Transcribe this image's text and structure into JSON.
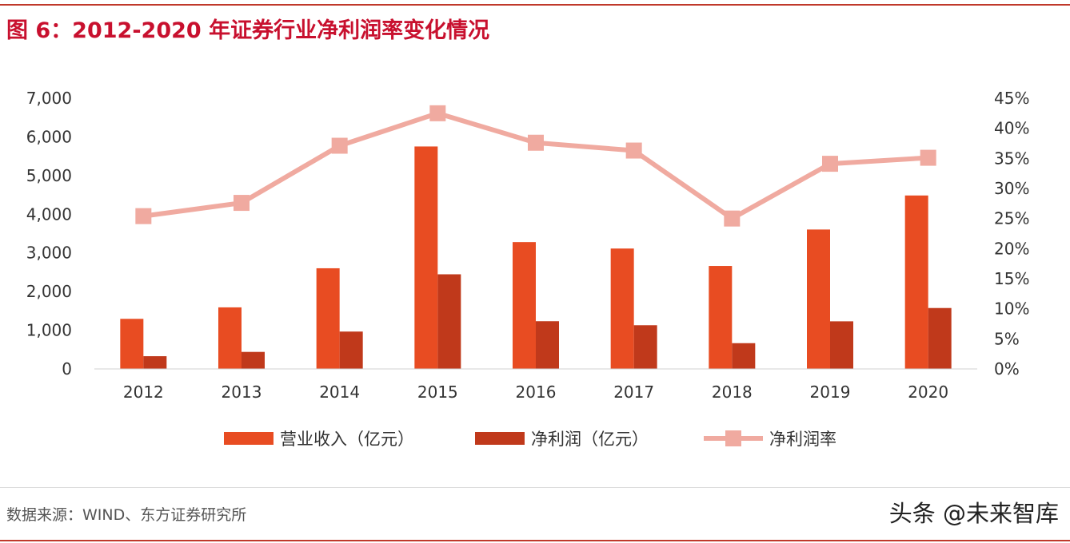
{
  "title": "图 6：2012-2020 年证券行业净利润率变化情况",
  "source": "数据来源：WIND、东方证券研究所",
  "watermark": "头条 @未来智库",
  "colors": {
    "revenue": "#e84c22",
    "profit": "#c0391b",
    "margin": "#f0aaa0",
    "axis_text": "#333333",
    "rule": "#c0392b"
  },
  "chart_data": {
    "type": "bar",
    "categories": [
      "2012",
      "2013",
      "2014",
      "2015",
      "2016",
      "2017",
      "2018",
      "2019",
      "2020"
    ],
    "series": [
      {
        "name": "营业收入（亿元）",
        "type": "bar",
        "axis": "left",
        "values": [
          1295,
          1592,
          2603,
          5752,
          3280,
          3113,
          2663,
          3605,
          4485
        ]
      },
      {
        "name": "净利润（亿元）",
        "type": "bar",
        "axis": "left",
        "values": [
          329,
          440,
          966,
          2447,
          1234,
          1130,
          666,
          1231,
          1575
        ]
      },
      {
        "name": "净利润率",
        "type": "line",
        "axis": "right",
        "values": [
          25.4,
          27.6,
          37.1,
          42.5,
          37.6,
          36.3,
          25.0,
          34.1,
          35.1
        ]
      }
    ],
    "y_left": {
      "min": 0,
      "max": 7000,
      "ticks": [
        "0",
        "1,000",
        "2,000",
        "3,000",
        "4,000",
        "5,000",
        "6,000",
        "7,000"
      ]
    },
    "y_right": {
      "min": 0,
      "max": 45,
      "ticks": [
        "0%",
        "5%",
        "10%",
        "15%",
        "20%",
        "25%",
        "30%",
        "35%",
        "40%",
        "45%"
      ]
    },
    "legend_position": "bottom",
    "grid": false
  }
}
